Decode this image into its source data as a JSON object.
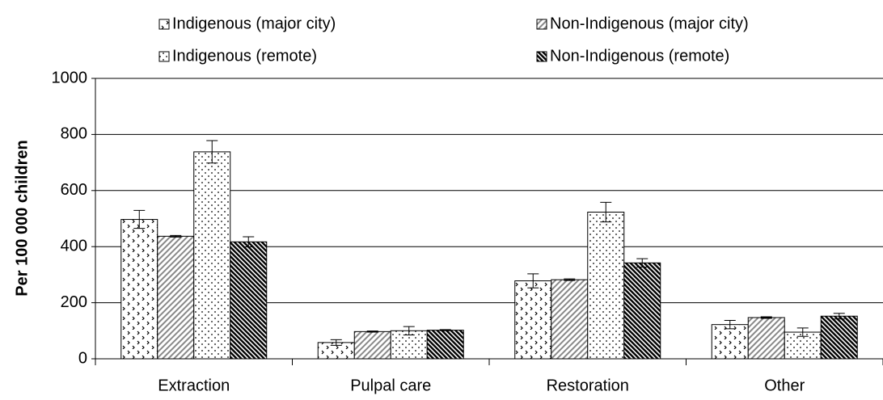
{
  "chart_data": {
    "type": "bar",
    "ylabel": "Per 100 000 children",
    "categories": [
      "Extraction",
      "Pulpal care",
      "Restoration",
      "Other"
    ],
    "series": [
      {
        "name": "Indigenous (major city)",
        "pattern": "chevron-dots",
        "color": "#000000",
        "values": [
          497,
          58,
          278,
          122
        ],
        "errors": [
          32,
          10,
          25,
          15
        ]
      },
      {
        "name": "Non-Indigenous (major city)",
        "pattern": "diagonal-light",
        "color": "#000000",
        "values": [
          437,
          97,
          282,
          147
        ],
        "errors": [
          3,
          2,
          3,
          3
        ]
      },
      {
        "name": "Indigenous (remote)",
        "pattern": "small-dots",
        "color": "#000000",
        "values": [
          738,
          100,
          523,
          95
        ],
        "errors": [
          40,
          15,
          35,
          15
        ]
      },
      {
        "name": "Non-Indigenous (remote)",
        "pattern": "diagonal-dark",
        "color": "#000000",
        "values": [
          417,
          102,
          342,
          152
        ],
        "errors": [
          18,
          2,
          15,
          10
        ]
      }
    ],
    "ylim": [
      0,
      1000
    ],
    "yticks": [
      0,
      200,
      400,
      600,
      800,
      1000
    ],
    "grid": true
  }
}
